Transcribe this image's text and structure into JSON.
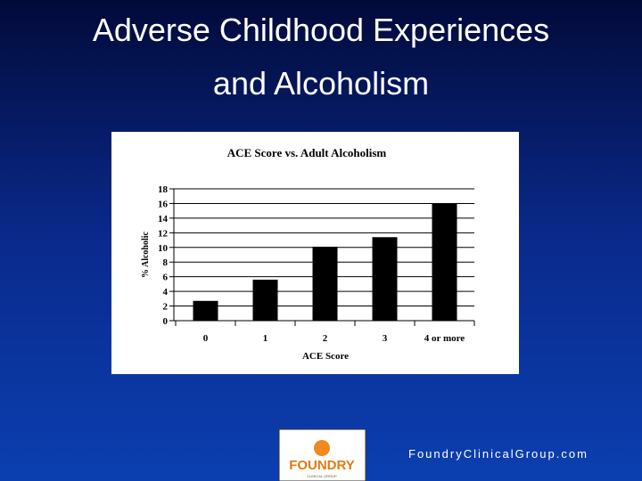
{
  "slide": {
    "title": [
      "Adverse Childhood Experiences",
      "and Alcoholism"
    ],
    "footer": "FoundryClinicalGroup.com",
    "logo": {
      "name": "FOUNDRY",
      "tagline": "CLINICAL GROUP"
    }
  },
  "chart_data": {
    "type": "bar",
    "title": "ACE Score vs. Adult Alcoholism",
    "x_label": "ACE Score",
    "y_label": "% Alcoholic",
    "categories": [
      "0",
      "1",
      "2",
      "3",
      "4 or more"
    ],
    "values": [
      2.7,
      5.6,
      10.1,
      11.4,
      16.0
    ],
    "color": "#000000",
    "ylim": [
      0,
      18
    ],
    "yticks": [
      0,
      2,
      4,
      6,
      8,
      10,
      12,
      14,
      16,
      18
    ],
    "grid": true
  }
}
